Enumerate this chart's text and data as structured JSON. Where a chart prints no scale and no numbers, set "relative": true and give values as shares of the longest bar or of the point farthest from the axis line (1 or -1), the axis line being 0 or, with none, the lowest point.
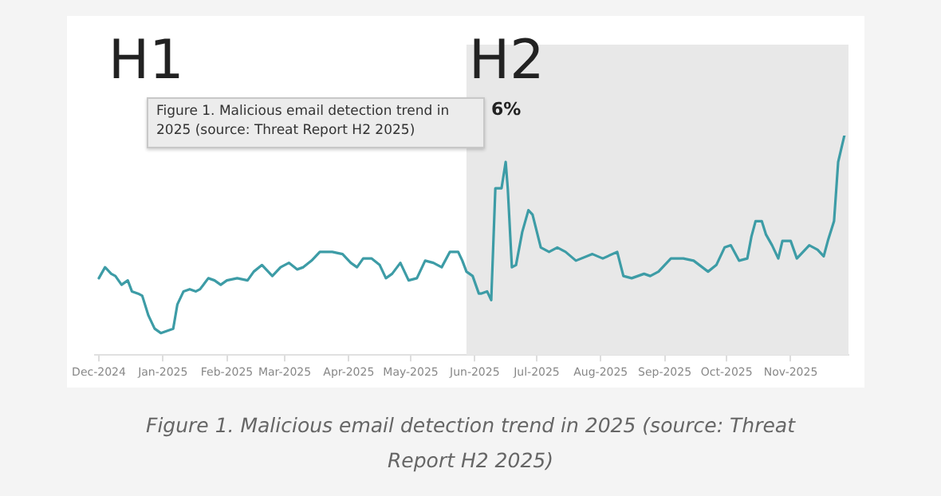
{
  "chart_data": {
    "type": "line",
    "relative": true,
    "x": [
      "2024-12-01",
      "2024-12-04",
      "2024-12-07",
      "2024-12-09",
      "2024-12-12",
      "2024-12-15",
      "2024-12-17",
      "2024-12-20",
      "2024-12-22",
      "2024-12-25",
      "2024-12-28",
      "2024-12-31",
      "2025-01-03",
      "2025-01-06",
      "2025-01-08",
      "2025-01-11",
      "2025-01-14",
      "2025-01-17",
      "2025-01-19",
      "2025-01-23",
      "2025-01-26",
      "2025-01-29",
      "2025-02-01",
      "2025-02-06",
      "2025-02-11",
      "2025-02-14",
      "2025-02-18",
      "2025-02-23",
      "2025-02-27",
      "2025-03-03",
      "2025-03-07",
      "2025-03-10",
      "2025-03-14",
      "2025-03-18",
      "2025-03-24",
      "2025-03-29",
      "2025-04-02",
      "2025-04-05",
      "2025-04-08",
      "2025-04-12",
      "2025-04-16",
      "2025-04-19",
      "2025-04-22",
      "2025-04-26",
      "2025-04-30",
      "2025-05-04",
      "2025-05-08",
      "2025-05-12",
      "2025-05-16",
      "2025-05-20",
      "2025-05-24",
      "2025-05-26",
      "2025-05-28",
      "2025-05-31",
      "2025-06-03",
      "2025-06-04",
      "2025-06-07",
      "2025-06-09",
      "2025-06-11",
      "2025-06-14",
      "2025-06-16",
      "2025-06-17",
      "2025-06-19",
      "2025-06-21",
      "2025-06-24",
      "2025-06-27",
      "2025-06-29",
      "2025-07-03",
      "2025-07-07",
      "2025-07-11",
      "2025-07-15",
      "2025-07-20",
      "2025-07-28",
      "2025-08-02",
      "2025-08-09",
      "2025-08-12",
      "2025-08-16",
      "2025-08-22",
      "2025-08-25",
      "2025-08-29",
      "2025-09-04",
      "2025-09-10",
      "2025-09-15",
      "2025-09-22",
      "2025-09-26",
      "2025-09-30",
      "2025-10-03",
      "2025-10-07",
      "2025-10-11",
      "2025-10-13",
      "2025-10-15",
      "2025-10-18",
      "2025-10-20",
      "2025-10-23",
      "2025-10-26",
      "2025-10-28",
      "2025-11-01",
      "2025-11-04",
      "2025-11-08",
      "2025-11-10",
      "2025-11-14",
      "2025-11-17",
      "2025-11-19",
      "2025-11-22",
      "2025-11-24",
      "2025-11-27"
    ],
    "series": [
      {
        "color": "#3d9ca6",
        "values": [
          0.35,
          0.4,
          0.37,
          0.36,
          0.32,
          0.34,
          0.29,
          0.28,
          0.27,
          0.18,
          0.12,
          0.1,
          0.11,
          0.12,
          0.23,
          0.29,
          0.3,
          0.29,
          0.3,
          0.35,
          0.34,
          0.32,
          0.34,
          0.35,
          0.34,
          0.38,
          0.41,
          0.36,
          0.4,
          0.42,
          0.39,
          0.4,
          0.43,
          0.47,
          0.47,
          0.46,
          0.42,
          0.4,
          0.44,
          0.44,
          0.41,
          0.35,
          0.37,
          0.42,
          0.34,
          0.35,
          0.43,
          0.42,
          0.4,
          0.47,
          0.47,
          0.43,
          0.38,
          0.36,
          0.28,
          0.28,
          0.29,
          0.25,
          0.76,
          0.76,
          0.88,
          0.76,
          0.4,
          0.41,
          0.56,
          0.66,
          0.64,
          0.49,
          0.47,
          0.49,
          0.47,
          0.43,
          0.46,
          0.44,
          0.47,
          0.36,
          0.35,
          0.37,
          0.36,
          0.38,
          0.44,
          0.44,
          0.43,
          0.38,
          0.41,
          0.49,
          0.5,
          0.43,
          0.44,
          0.54,
          0.61,
          0.61,
          0.55,
          0.5,
          0.44,
          0.52,
          0.52,
          0.44,
          0.48,
          0.5,
          0.48,
          0.45,
          0.52,
          0.61,
          0.88,
          1
        ]
      }
    ],
    "xlim": [
      "2024-11-29",
      "2025-11-29"
    ],
    "xticks": [
      {
        "value": "2024-12-01",
        "label": "Dec-2024"
      },
      {
        "value": "2025-01-01",
        "label": "Jan-2025"
      },
      {
        "value": "2025-02-01",
        "label": "Feb-2025"
      },
      {
        "value": "2025-03-01",
        "label": "Mar-2025"
      },
      {
        "value": "2025-04-01",
        "label": "Apr-2025"
      },
      {
        "value": "2025-05-01",
        "label": "May-2025"
      },
      {
        "value": "2025-06-01",
        "label": "Jun-2025"
      },
      {
        "value": "2025-07-01",
        "label": "Jul-2025"
      },
      {
        "value": "2025-08-01",
        "label": "Aug-2025"
      },
      {
        "value": "2025-09-01",
        "label": "Sep-2025"
      },
      {
        "value": "2025-10-01",
        "label": "Oct-2025"
      },
      {
        "value": "2025-11-01",
        "label": "Nov-2025"
      }
    ],
    "bands": [
      {
        "axis": "x",
        "from": "2025-05-28",
        "to": "2025-11-29",
        "color": "#e8e8e8"
      }
    ],
    "grid": false,
    "legend": false,
    "marker": "none",
    "line_style": "solid",
    "annotations": [
      "H1",
      "H2",
      "6%",
      "Figure 1. Malicious email detection trend in 2025 (source: Threat Report H2 2025)",
      "Figure 1. Malicious email detection trend in 2025 (source: Threat Report H2 2025)"
    ]
  }
}
